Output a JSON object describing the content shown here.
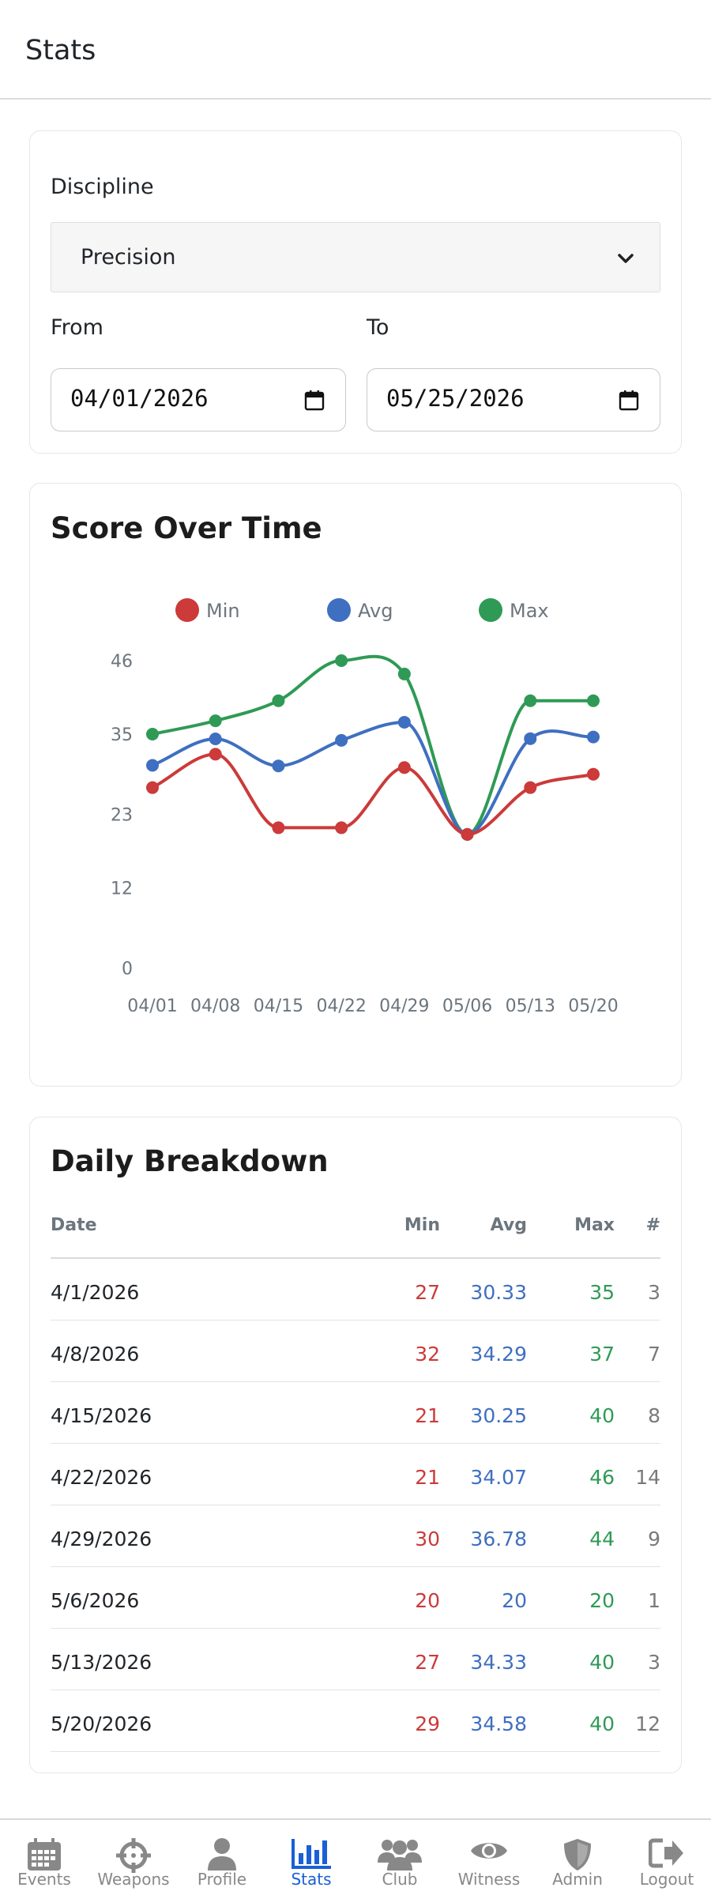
{
  "header": {
    "title": "Stats"
  },
  "filters": {
    "discipline_label": "Discipline",
    "discipline_value": "Precision",
    "from_label": "From",
    "from_value": "04/01/2026",
    "to_label": "To",
    "to_value": "05/25/2026"
  },
  "chart_section": {
    "title": "Score Over Time"
  },
  "chart_data": {
    "type": "line",
    "x": [
      "04/01",
      "04/08",
      "04/15",
      "04/22",
      "04/29",
      "05/06",
      "05/13",
      "05/20"
    ],
    "yticks": [
      0,
      12,
      23,
      35,
      46
    ],
    "ylim": [
      0,
      46
    ],
    "legend_position": "top",
    "grid": false,
    "series": [
      {
        "name": "Min",
        "color": "#cc3a3a",
        "values": [
          27,
          32,
          21,
          21,
          30,
          20,
          27,
          29
        ]
      },
      {
        "name": "Avg",
        "color": "#3f6fc0",
        "values": [
          30.33,
          34.29,
          30.25,
          34.07,
          36.78,
          20,
          34.33,
          34.58
        ]
      },
      {
        "name": "Max",
        "color": "#2f9a55",
        "values": [
          35,
          37,
          40,
          46,
          44,
          20,
          40,
          40
        ]
      }
    ]
  },
  "table": {
    "title": "Daily Breakdown",
    "headers": {
      "date": "Date",
      "min": "Min",
      "avg": "Avg",
      "max": "Max",
      "count": "#"
    },
    "rows": [
      {
        "date": "4/1/2026",
        "min": "27",
        "avg": "30.33",
        "max": "35",
        "count": "3"
      },
      {
        "date": "4/8/2026",
        "min": "32",
        "avg": "34.29",
        "max": "37",
        "count": "7"
      },
      {
        "date": "4/15/2026",
        "min": "21",
        "avg": "30.25",
        "max": "40",
        "count": "8"
      },
      {
        "date": "4/22/2026",
        "min": "21",
        "avg": "34.07",
        "max": "46",
        "count": "14"
      },
      {
        "date": "4/29/2026",
        "min": "30",
        "avg": "36.78",
        "max": "44",
        "count": "9"
      },
      {
        "date": "5/6/2026",
        "min": "20",
        "avg": "20",
        "max": "20",
        "count": "1"
      },
      {
        "date": "5/13/2026",
        "min": "27",
        "avg": "34.33",
        "max": "40",
        "count": "3"
      },
      {
        "date": "5/20/2026",
        "min": "29",
        "avg": "34.58",
        "max": "40",
        "count": "12"
      }
    ]
  },
  "colors": {
    "min": "#cc3a3a",
    "avg": "#3f6fc0",
    "max": "#2f9a55",
    "active_nav": "#1a5fd6"
  },
  "nav": [
    {
      "label": "Events",
      "icon": "calendar-icon",
      "active": false
    },
    {
      "label": "Weapons",
      "icon": "crosshairs-icon",
      "active": false
    },
    {
      "label": "Profile",
      "icon": "user-icon",
      "active": false
    },
    {
      "label": "Stats",
      "icon": "chart-bar-icon",
      "active": true
    },
    {
      "label": "Club",
      "icon": "users-icon",
      "active": false
    },
    {
      "label": "Witness",
      "icon": "eye-icon",
      "active": false
    },
    {
      "label": "Admin",
      "icon": "shield-icon",
      "active": false
    },
    {
      "label": "Logout",
      "icon": "sign-out-icon",
      "active": false
    }
  ]
}
